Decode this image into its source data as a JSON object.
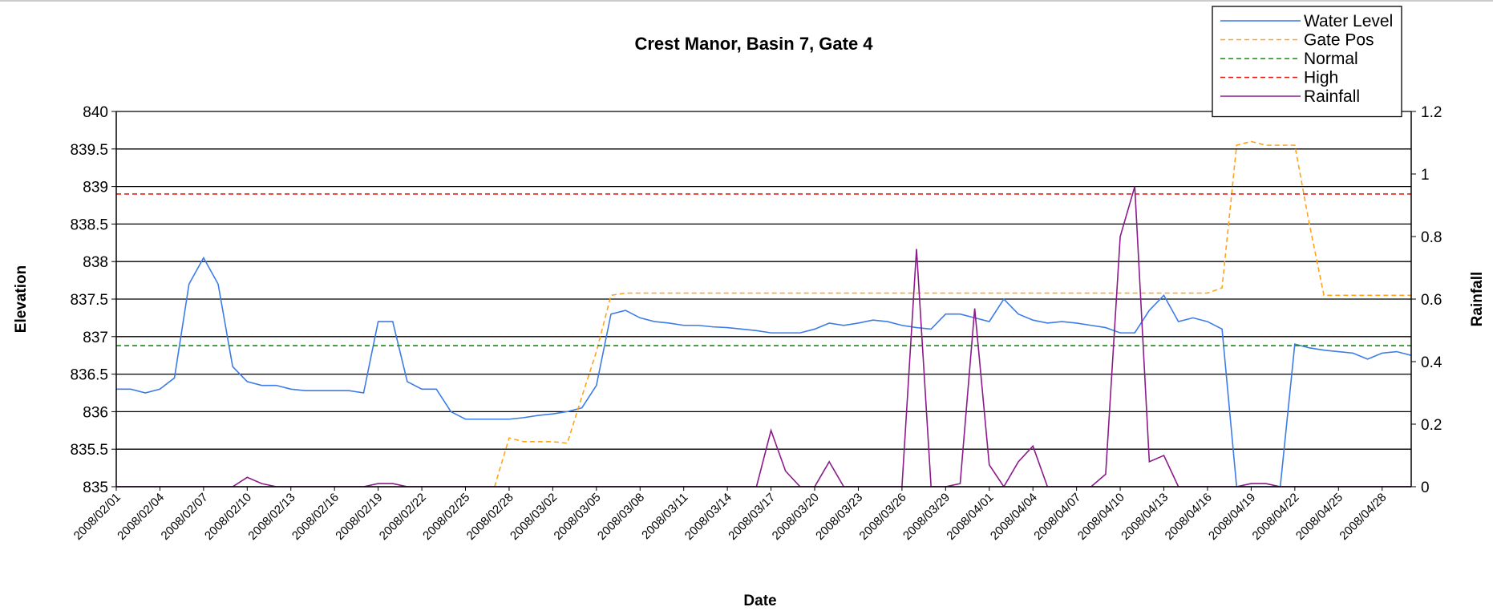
{
  "chart_data": {
    "type": "line",
    "title": "Crest Manor, Basin 7, Gate 4",
    "x_label": "Date",
    "y_label": "Elevation",
    "y2_label": "Rainfall",
    "categories": [
      "2008/02/01",
      null,
      null,
      "2008/02/04",
      null,
      null,
      "2008/02/07",
      null,
      null,
      "2008/02/10",
      null,
      null,
      "2008/02/13",
      null,
      null,
      "2008/02/16",
      null,
      null,
      "2008/02/19",
      null,
      null,
      "2008/02/22",
      null,
      null,
      "2008/02/25",
      null,
      null,
      "2008/02/28",
      null,
      null,
      "2008/03/02",
      null,
      null,
      "2008/03/05",
      null,
      null,
      "2008/03/08",
      null,
      null,
      "2008/03/11",
      null,
      null,
      "2008/03/14",
      null,
      null,
      "2008/03/17",
      null,
      null,
      "2008/03/20",
      null,
      null,
      "2008/03/23",
      null,
      null,
      "2008/03/26",
      null,
      null,
      "2008/03/29",
      null,
      null,
      "2008/04/01",
      null,
      null,
      "2008/04/04",
      null,
      null,
      "2008/04/07",
      null,
      null,
      "2008/04/10",
      null,
      null,
      "2008/04/13",
      null,
      null,
      "2008/04/16",
      null,
      null,
      "2008/04/19",
      null,
      null,
      "2008/04/22",
      null,
      null,
      "2008/04/25",
      null,
      null,
      "2008/04/28",
      null,
      null
    ],
    "ylim": [
      835,
      840
    ],
    "yticks": [
      835,
      835.5,
      836,
      836.5,
      837,
      837.5,
      838,
      838.5,
      839,
      839.5,
      840
    ],
    "y2lim": [
      0,
      1.2
    ],
    "y2ticks": [
      0,
      0.2,
      0.4,
      0.6,
      0.8,
      1,
      1.2
    ],
    "grid": true,
    "legend": "top-right",
    "series": [
      {
        "name": "Water Level",
        "color": "#3d7ce8",
        "dashed": false,
        "values": [
          836.3,
          836.3,
          836.25,
          836.3,
          836.45,
          837.7,
          838.05,
          837.7,
          836.6,
          836.4,
          836.35,
          836.35,
          836.3,
          836.28,
          836.28,
          836.28,
          836.28,
          836.25,
          837.2,
          837.2,
          836.4,
          836.3,
          836.3,
          836.0,
          835.9,
          835.9,
          835.9,
          835.9,
          835.92,
          835.95,
          835.97,
          836.0,
          836.05,
          836.35,
          837.3,
          837.35,
          837.25,
          837.2,
          837.18,
          837.15,
          837.15,
          837.13,
          837.12,
          837.1,
          837.08,
          837.05,
          837.05,
          837.05,
          837.1,
          837.18,
          837.15,
          837.18,
          837.22,
          837.2,
          837.15,
          837.12,
          837.1,
          837.3,
          837.3,
          837.25,
          837.2,
          837.5,
          837.3,
          837.22,
          837.18,
          837.2,
          837.18,
          837.15,
          837.12,
          837.05,
          837.05,
          837.35,
          837.55,
          837.2,
          837.25,
          837.2,
          837.1,
          835,
          835,
          835,
          835,
          836.9,
          836.85,
          836.82,
          836.8,
          836.78,
          836.7,
          836.78,
          836.8,
          836.75
        ]
      },
      {
        "name": "Gate Pos",
        "color": "#ffa31a",
        "dashed": true,
        "values": [
          null,
          null,
          null,
          null,
          null,
          null,
          null,
          null,
          null,
          null,
          null,
          null,
          null,
          null,
          null,
          null,
          null,
          null,
          null,
          null,
          null,
          null,
          null,
          null,
          null,
          null,
          835,
          835.65,
          835.6,
          835.6,
          835.6,
          835.58,
          836.2,
          836.8,
          837.55,
          837.58,
          837.58,
          837.58,
          837.58,
          837.58,
          837.58,
          837.58,
          837.58,
          837.58,
          837.58,
          837.58,
          837.58,
          837.58,
          837.58,
          837.58,
          837.58,
          837.58,
          837.58,
          837.58,
          837.58,
          837.58,
          837.58,
          837.58,
          837.58,
          837.58,
          837.58,
          837.58,
          837.58,
          837.58,
          837.58,
          837.58,
          837.58,
          837.58,
          837.58,
          837.58,
          837.58,
          837.58,
          837.58,
          837.58,
          837.58,
          837.58,
          837.65,
          839.55,
          839.6,
          839.55,
          839.55,
          839.55,
          838.5,
          837.55,
          837.55,
          837.55,
          837.55,
          837.55,
          837.55,
          837.55
        ]
      },
      {
        "name": "Normal",
        "color": "#1a8a1a",
        "dashed": true,
        "values": [
          836.88,
          836.88,
          836.88,
          836.88,
          836.88,
          836.88,
          836.88,
          836.88,
          836.88,
          836.88,
          836.88,
          836.88,
          836.88,
          836.88,
          836.88,
          836.88,
          836.88,
          836.88,
          836.88,
          836.88,
          836.88,
          836.88,
          836.88,
          836.88,
          836.88,
          836.88,
          836.88,
          836.88,
          836.88,
          836.88,
          836.88,
          836.88,
          836.88,
          836.88,
          836.88,
          836.88,
          836.88,
          836.88,
          836.88,
          836.88,
          836.88,
          836.88,
          836.88,
          836.88,
          836.88,
          836.88,
          836.88,
          836.88,
          836.88,
          836.88,
          836.88,
          836.88,
          836.88,
          836.88,
          836.88,
          836.88,
          836.88,
          836.88,
          836.88,
          836.88,
          836.88,
          836.88,
          836.88,
          836.88,
          836.88,
          836.88,
          836.88,
          836.88,
          836.88,
          836.88,
          836.88,
          836.88,
          836.88,
          836.88,
          836.88,
          836.88,
          836.88,
          836.88,
          836.88,
          836.88,
          836.88,
          836.88,
          836.88,
          836.88,
          836.88,
          836.88,
          836.88,
          836.88,
          836.88,
          836.88
        ]
      },
      {
        "name": "High",
        "color": "#e8201a",
        "dashed": true,
        "values": [
          838.9,
          838.9,
          838.9,
          838.9,
          838.9,
          838.9,
          838.9,
          838.9,
          838.9,
          838.9,
          838.9,
          838.9,
          838.9,
          838.9,
          838.9,
          838.9,
          838.9,
          838.9,
          838.9,
          838.9,
          838.9,
          838.9,
          838.9,
          838.9,
          838.9,
          838.9,
          838.9,
          838.9,
          838.9,
          838.9,
          838.9,
          838.9,
          838.9,
          838.9,
          838.9,
          838.9,
          838.9,
          838.9,
          838.9,
          838.9,
          838.9,
          838.9,
          838.9,
          838.9,
          838.9,
          838.9,
          838.9,
          838.9,
          838.9,
          838.9,
          838.9,
          838.9,
          838.9,
          838.9,
          838.9,
          838.9,
          838.9,
          838.9,
          838.9,
          838.9,
          838.9,
          838.9,
          838.9,
          838.9,
          838.9,
          838.9,
          838.9,
          838.9,
          838.9,
          838.9,
          838.9,
          838.9,
          838.9,
          838.9,
          838.9,
          838.9,
          838.9,
          838.9,
          838.9,
          838.9,
          838.9,
          838.9,
          838.9,
          838.9,
          838.9,
          838.9,
          838.9,
          838.9,
          838.9,
          838.9
        ]
      },
      {
        "name": "Rainfall",
        "color": "#8b1a8b",
        "dashed": false,
        "axis": "y2",
        "values": [
          0,
          0,
          0,
          0,
          0,
          0,
          0,
          0,
          0,
          0.03,
          0.01,
          0,
          0,
          0,
          0,
          0,
          0,
          0,
          0.01,
          0.01,
          0,
          0,
          0,
          0,
          0,
          0,
          0,
          0,
          0,
          0,
          0,
          0,
          0,
          0,
          0,
          0,
          0,
          0,
          0,
          0,
          0,
          0,
          0,
          0,
          0,
          0.18,
          0.05,
          0,
          0,
          0.08,
          0,
          0,
          0,
          0,
          0,
          0.76,
          0,
          0,
          0.01,
          0.57,
          0.07,
          0,
          0.08,
          0.13,
          0,
          0,
          0,
          0,
          0.04,
          0.8,
          0.96,
          0.08,
          0.1,
          0,
          0,
          0,
          0,
          0,
          0.01,
          0.01,
          0,
          0,
          0,
          0,
          0,
          0,
          0,
          0,
          0,
          0
        ]
      }
    ]
  }
}
